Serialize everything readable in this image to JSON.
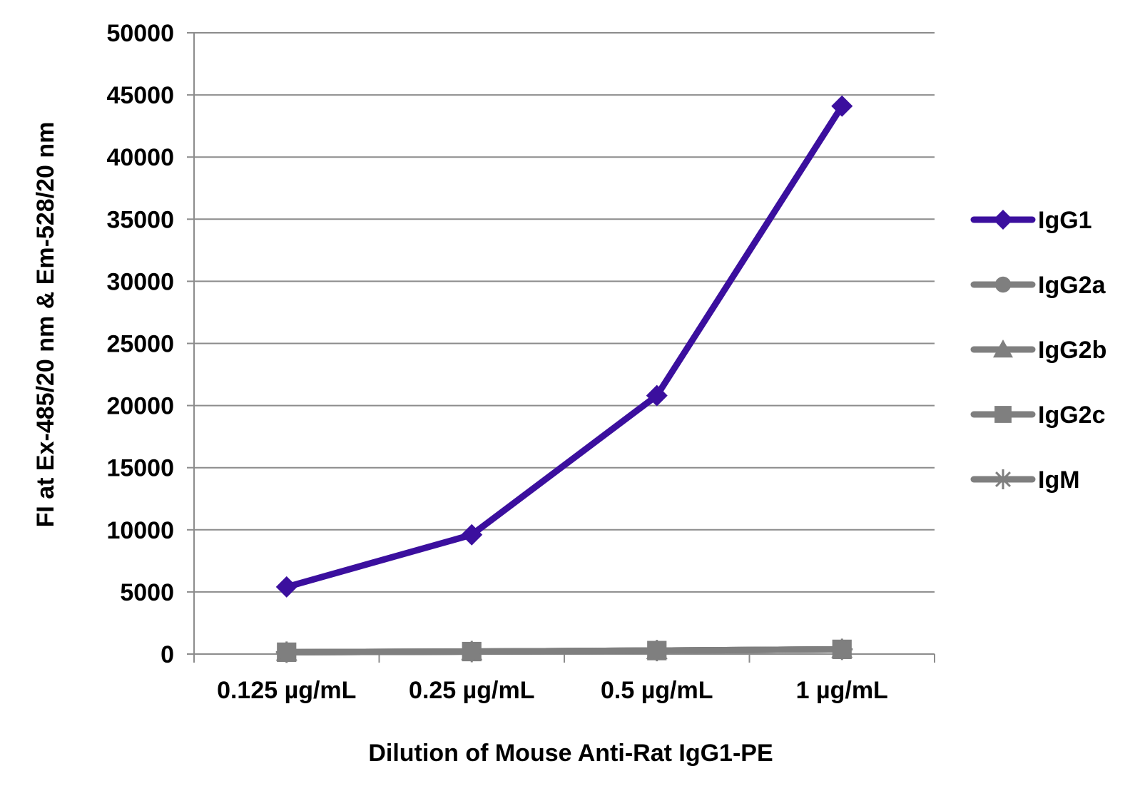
{
  "chart_data": {
    "type": "line",
    "title": "",
    "xlabel": "Dilution of Mouse Anti-Rat IgG1-PE",
    "ylabel": "FI at Ex-485/20 nm & Em-528/20 nm",
    "categories": [
      "0.125 µg/mL",
      "0.25 µg/mL",
      "0.5 µg/mL",
      "1 µg/mL"
    ],
    "ylim": [
      0,
      50000
    ],
    "yticks": [
      0,
      5000,
      10000,
      15000,
      20000,
      25000,
      30000,
      35000,
      40000,
      45000,
      50000
    ],
    "grid": "horizontal",
    "legend_position": "right",
    "series": [
      {
        "name": "IgG1",
        "values": [
          5400,
          9600,
          20800,
          44100
        ],
        "color": "#3b0f9e",
        "marker": "diamond"
      },
      {
        "name": "IgG2a",
        "values": [
          150,
          200,
          280,
          380
        ],
        "color": "#7f7f7f",
        "marker": "circle"
      },
      {
        "name": "IgG2b",
        "values": [
          150,
          200,
          280,
          380
        ],
        "color": "#7f7f7f",
        "marker": "triangle"
      },
      {
        "name": "IgG2c",
        "values": [
          150,
          200,
          280,
          380
        ],
        "color": "#7f7f7f",
        "marker": "square"
      },
      {
        "name": "IgM",
        "values": [
          150,
          200,
          280,
          380
        ],
        "color": "#7f7f7f",
        "marker": "star"
      }
    ],
    "colors": {
      "grid": "#8c8c8c",
      "axis": "#8c8c8c"
    }
  }
}
